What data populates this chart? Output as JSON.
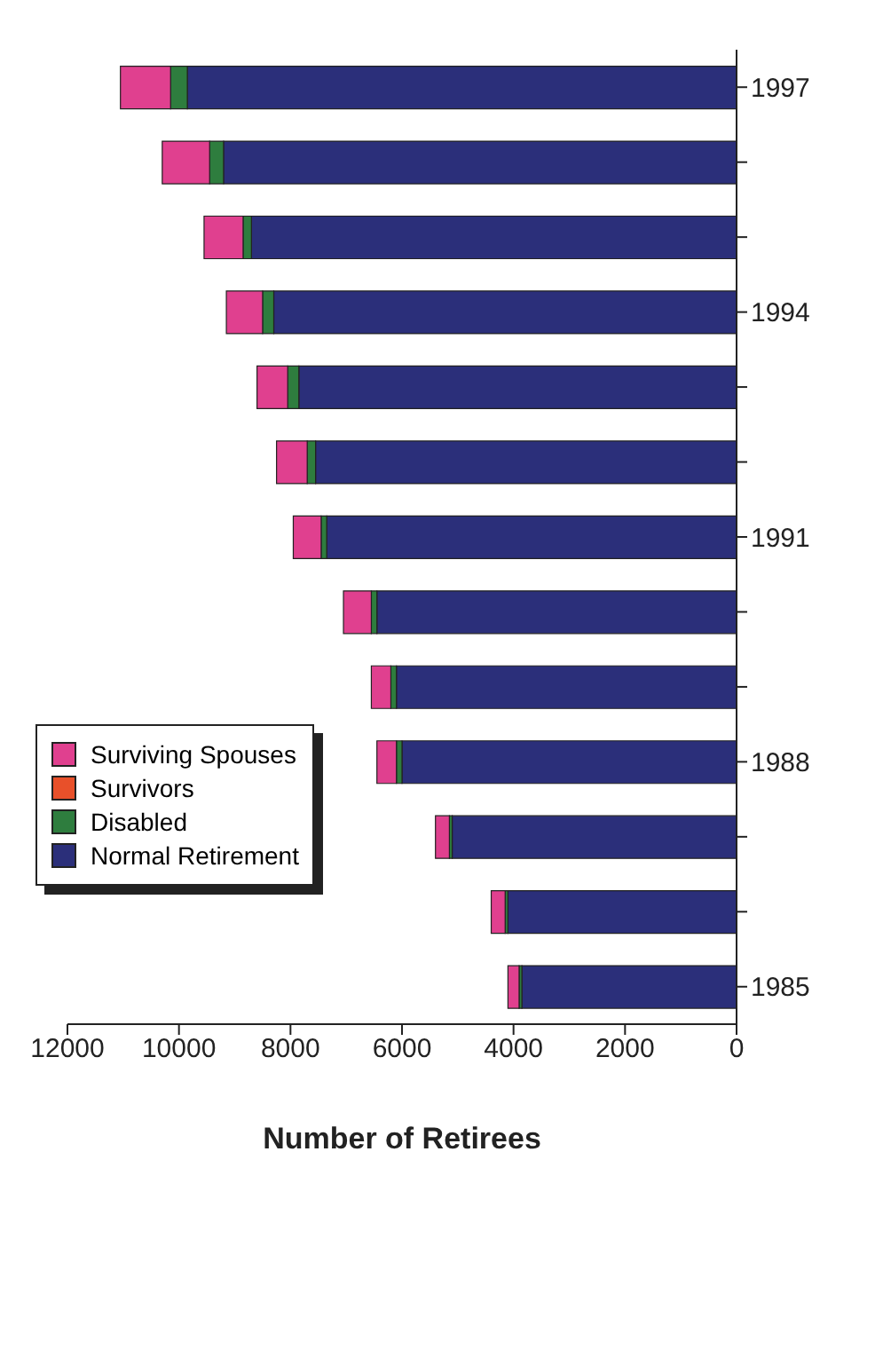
{
  "chart_data": {
    "type": "bar",
    "orientation": "horizontal",
    "stacked": true,
    "xlabel": "Number of Retirees",
    "categories": [
      "1997",
      null,
      null,
      "1994",
      null,
      null,
      "1991",
      null,
      null,
      "1988",
      null,
      null,
      "1985"
    ],
    "series": [
      {
        "name": "Normal Retirement",
        "color": "#2b2f7a",
        "values": [
          9850,
          9200,
          8700,
          8300,
          7850,
          7550,
          7350,
          6450,
          6100,
          6000,
          5100,
          4100,
          3850
        ]
      },
      {
        "name": "Disabled",
        "color": "#2e7d3e",
        "values": [
          300,
          250,
          150,
          200,
          200,
          150,
          100,
          100,
          100,
          100,
          50,
          50,
          50
        ]
      },
      {
        "name": "Survivors",
        "color": "#e8502a",
        "values": [
          0,
          0,
          0,
          0,
          0,
          0,
          0,
          0,
          0,
          0,
          0,
          0,
          0
        ]
      },
      {
        "name": "Surviving Spouses",
        "color": "#e0408f",
        "values": [
          900,
          850,
          700,
          650,
          550,
          550,
          500,
          500,
          350,
          350,
          250,
          250,
          200
        ]
      }
    ],
    "xlim": [
      12000,
      0
    ],
    "xticks": [
      0,
      2000,
      4000,
      6000,
      8000,
      10000,
      12000
    ],
    "legend": "left"
  }
}
